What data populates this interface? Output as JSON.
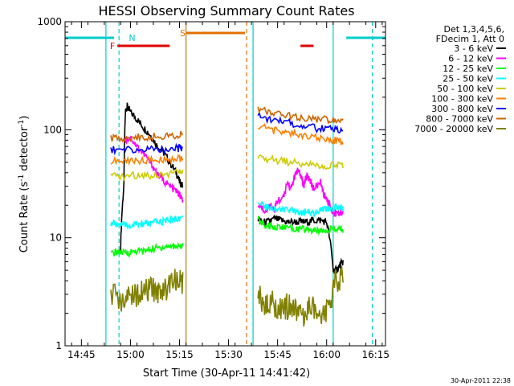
{
  "chart_data": {
    "type": "line",
    "title": "HESSI Observing Summary Count Rates",
    "xlabel": "Start Time (30-Apr-11 14:41:42)",
    "ylabel_main": "Count Rate (s",
    "ylabel_sup1": "-1",
    "ylabel_mid": " detector",
    "ylabel_sup2": "-1",
    "ylabel_end": ")",
    "ylog": true,
    "ylim": [
      1,
      1000
    ],
    "xlim_minutes": [
      -2,
      96
    ],
    "xticks": [
      {
        "m": 3,
        "label": "14:45"
      },
      {
        "m": 18,
        "label": "15:00"
      },
      {
        "m": 33,
        "label": "15:15"
      },
      {
        "m": 48,
        "label": "15:30"
      },
      {
        "m": 63,
        "label": "15:45"
      },
      {
        "m": 78,
        "label": "16:00"
      },
      {
        "m": 93,
        "label": "16:15"
      }
    ],
    "yticks": [
      {
        "v": 1,
        "label": "1"
      },
      {
        "v": 10,
        "label": "10"
      },
      {
        "v": 100,
        "label": "100"
      },
      {
        "v": 1000,
        "label": "1000"
      }
    ],
    "legend": {
      "position": "top-right",
      "header_line1": "Det 1,3,4,5,6,",
      "header_line2": "FDecim 1, Att 0"
    },
    "series": [
      {
        "name": "3 - 6 keV",
        "color": "#000000",
        "segments": [
          [
            [
              15,
              8
            ],
            [
              16,
              30
            ],
            [
              16.5,
              150
            ],
            [
              17,
              165
            ],
            [
              18,
              145
            ],
            [
              20,
              125
            ],
            [
              22,
              105
            ],
            [
              24,
              90
            ],
            [
              26,
              72
            ],
            [
              28,
              62
            ],
            [
              30,
              50
            ],
            [
              32,
              40
            ],
            [
              33,
              33
            ],
            [
              34,
              30
            ]
          ],
          [
            [
              57,
              15
            ],
            [
              58,
              14
            ],
            [
              60,
              14
            ],
            [
              62,
              15
            ],
            [
              64,
              14.5
            ],
            [
              66,
              14
            ],
            [
              68,
              14
            ],
            [
              70,
              14
            ],
            [
              72,
              14
            ],
            [
              74,
              14.5
            ],
            [
              76,
              14.5
            ],
            [
              78,
              14
            ],
            [
              80,
              5
            ],
            [
              81,
              5
            ],
            [
              82,
              5.5
            ],
            [
              83,
              6
            ]
          ]
        ]
      },
      {
        "name": "6 - 12 keV",
        "color": "#ff00ff",
        "segments": [
          [
            [
              16.5,
              80
            ],
            [
              18,
              85
            ],
            [
              20,
              70
            ],
            [
              22,
              60
            ],
            [
              24,
              50
            ],
            [
              26,
              40
            ],
            [
              28,
              34
            ],
            [
              30,
              30
            ],
            [
              32,
              27
            ],
            [
              33,
              25
            ],
            [
              34,
              22
            ]
          ],
          [
            [
              57,
              20
            ],
            [
              59,
              18
            ],
            [
              61,
              20
            ],
            [
              62,
              18
            ],
            [
              63,
              22
            ],
            [
              65,
              24
            ],
            [
              66,
              33
            ],
            [
              67,
              28
            ],
            [
              68,
              35
            ],
            [
              69,
              42
            ],
            [
              70,
              38
            ],
            [
              71,
              30
            ],
            [
              72,
              38
            ],
            [
              73,
              34
            ],
            [
              74,
              28
            ],
            [
              76,
              33
            ],
            [
              77,
              26
            ],
            [
              78,
              22
            ],
            [
              79,
              20
            ],
            [
              80,
              17
            ],
            [
              82,
              17
            ],
            [
              83,
              17
            ]
          ]
        ]
      },
      {
        "name": "12 - 25 keV",
        "color": "#00ff00",
        "segments": [
          [
            [
              12,
              7
            ],
            [
              14,
              7.5
            ],
            [
              16,
              7.2
            ],
            [
              18,
              7.3
            ],
            [
              20,
              7.6
            ],
            [
              22,
              7.5
            ],
            [
              24,
              7.8
            ],
            [
              26,
              8
            ],
            [
              28,
              8.2
            ],
            [
              30,
              8.3
            ],
            [
              32,
              8.4
            ],
            [
              34,
              8.5
            ]
          ],
          [
            [
              57,
              15
            ],
            [
              59,
              13
            ],
            [
              61,
              13
            ],
            [
              63,
              12.5
            ],
            [
              65,
              12.5
            ],
            [
              67,
              12.2
            ],
            [
              69,
              12
            ],
            [
              71,
              12
            ],
            [
              73,
              11.8
            ],
            [
              75,
              11.5
            ],
            [
              77,
              12
            ],
            [
              79,
              12
            ],
            [
              81,
              12
            ],
            [
              83,
              12
            ]
          ]
        ]
      },
      {
        "name": "25 - 50 keV",
        "color": "#00ffff",
        "segments": [
          [
            [
              12,
              13.5
            ],
            [
              14,
              13.5
            ],
            [
              16,
              13
            ],
            [
              18,
              13
            ],
            [
              20,
              13.2
            ],
            [
              22,
              13.5
            ],
            [
              24,
              13.5
            ],
            [
              26,
              14
            ],
            [
              28,
              14.2
            ],
            [
              30,
              14.5
            ],
            [
              32,
              15
            ],
            [
              34,
              15.5
            ]
          ],
          [
            [
              57,
              22
            ],
            [
              59,
              20
            ],
            [
              61,
              19
            ],
            [
              63,
              18.5
            ],
            [
              65,
              18
            ],
            [
              67,
              18
            ],
            [
              69,
              17.5
            ],
            [
              71,
              17.5
            ],
            [
              73,
              17.2
            ],
            [
              75,
              17
            ],
            [
              77,
              18.5
            ],
            [
              79,
              19
            ],
            [
              81,
              19
            ],
            [
              83,
              19
            ]
          ]
        ]
      },
      {
        "name": "50 - 100 keV",
        "color": "#cccc00",
        "segments": [
          [
            [
              12,
              37
            ],
            [
              16,
              37
            ],
            [
              20,
              38
            ],
            [
              24,
              38
            ],
            [
              28,
              39
            ],
            [
              32,
              40
            ],
            [
              34,
              41
            ]
          ],
          [
            [
              57,
              55
            ],
            [
              61,
              53
            ],
            [
              65,
              51
            ],
            [
              69,
              49
            ],
            [
              73,
              47
            ],
            [
              77,
              46
            ],
            [
              80,
              47
            ],
            [
              83,
              47
            ]
          ]
        ]
      },
      {
        "name": "100 - 300 keV",
        "color": "#ff8000",
        "segments": [
          [
            [
              12,
              51
            ],
            [
              16,
              51
            ],
            [
              20,
              52
            ],
            [
              24,
              52
            ],
            [
              28,
              53
            ],
            [
              32,
              54
            ],
            [
              34,
              55
            ]
          ],
          [
            [
              57,
              110
            ],
            [
              61,
              100
            ],
            [
              65,
              95
            ],
            [
              69,
              90
            ],
            [
              73,
              85
            ],
            [
              77,
              82
            ],
            [
              80,
              80
            ],
            [
              83,
              78
            ]
          ]
        ]
      },
      {
        "name": "300 - 800 keV",
        "color": "#0000ff",
        "segments": [
          [
            [
              12,
              66
            ],
            [
              16,
              65
            ],
            [
              20,
              65
            ],
            [
              24,
              66
            ],
            [
              28,
              66
            ],
            [
              32,
              67
            ],
            [
              34,
              68
            ]
          ],
          [
            [
              57,
              135
            ],
            [
              61,
              125
            ],
            [
              65,
              118
            ],
            [
              69,
              112
            ],
            [
              73,
              105
            ],
            [
              77,
              102
            ],
            [
              80,
              100
            ],
            [
              83,
              100
            ]
          ]
        ]
      },
      {
        "name": "800 - 7000 keV",
        "color": "#cc6600",
        "segments": [
          [
            [
              12,
              84
            ],
            [
              16,
              84
            ],
            [
              20,
              85
            ],
            [
              24,
              86
            ],
            [
              28,
              87
            ],
            [
              32,
              89
            ],
            [
              34,
              90
            ]
          ],
          [
            [
              57,
              155
            ],
            [
              61,
              145
            ],
            [
              65,
              138
            ],
            [
              69,
              132
            ],
            [
              73,
              128
            ],
            [
              77,
              124
            ],
            [
              80,
              122
            ],
            [
              83,
              122
            ]
          ]
        ]
      },
      {
        "name": "7000 - 20000 keV",
        "color": "#808000",
        "segments": [
          [
            [
              12,
              3
            ],
            [
              16,
              2.5
            ],
            [
              18,
              3
            ],
            [
              20,
              3
            ],
            [
              22,
              3
            ],
            [
              24,
              3.5
            ],
            [
              26,
              3
            ],
            [
              28,
              3.5
            ],
            [
              30,
              3.5
            ],
            [
              32,
              4
            ],
            [
              34,
              4
            ]
          ],
          [
            [
              57,
              3
            ],
            [
              59,
              2.5
            ],
            [
              61,
              2.5
            ],
            [
              63,
              2.3
            ],
            [
              65,
              2.3
            ],
            [
              67,
              2.3
            ],
            [
              69,
              2
            ],
            [
              71,
              2
            ],
            [
              73,
              2.5
            ],
            [
              75,
              2
            ],
            [
              77,
              2
            ],
            [
              79,
              2.5
            ],
            [
              81,
              4
            ],
            [
              83,
              4.5
            ]
          ]
        ]
      }
    ],
    "flags": [
      {
        "label": "N",
        "color": "#00cccc",
        "label_at": 18.5,
        "bars": [
          [
            -2,
            13
          ],
          [
            84,
            96
          ]
        ]
      },
      {
        "label": "F",
        "color": "#e00000",
        "label_at": 12.5,
        "bars": [
          [
            14,
            30
          ]
        ]
      },
      {
        "label": "S",
        "color": "#e07000",
        "label_at": 34,
        "bars": [
          [
            35,
            53
          ]
        ]
      },
      {
        "label": "",
        "color": "#e00000",
        "bars": [
          [
            70,
            74
          ]
        ]
      }
    ],
    "vlines": [
      {
        "m": 10.5,
        "color": "#00cccc",
        "dash": false
      },
      {
        "m": 14.5,
        "color": "#00cccc",
        "dash": true
      },
      {
        "m": 35,
        "color": "#b08020",
        "dash": false
      },
      {
        "m": 53.5,
        "color": "#e07000",
        "dash": true
      },
      {
        "m": 55.5,
        "color": "#00cccc",
        "dash": false
      },
      {
        "m": 80,
        "color": "#00cccc",
        "dash": false
      },
      {
        "m": 92,
        "color": "#00cccc",
        "dash": true
      }
    ],
    "timestamp": "30-Apr-2011 22:38"
  }
}
